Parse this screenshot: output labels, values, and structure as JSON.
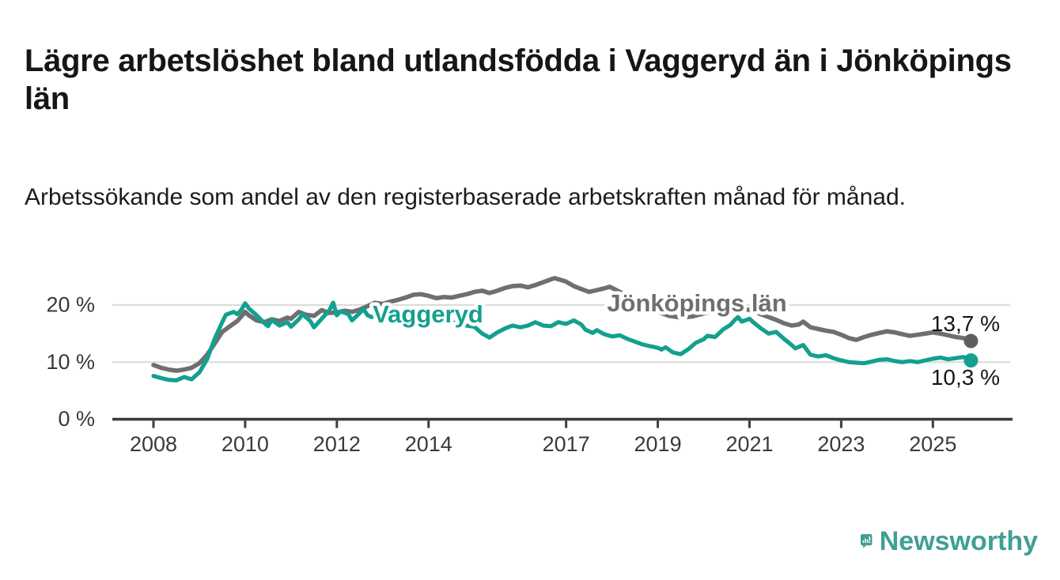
{
  "header": {
    "title": "Lägre arbetslöshet bland utlandsfödda i Vaggeryd än i Jönköpings län",
    "subtitle": "Arbetssökande som andel av den registerbaserade arbetskraften månad för månad."
  },
  "branding": {
    "logo_text": "Newsworthy",
    "logo_color": "#3f9f95",
    "logo_icon": "bar-chart-speech-bubble-icon"
  },
  "chart_data": {
    "type": "line",
    "unit": "%",
    "xlim": [
      2007.1,
      2026.7
    ],
    "ylim": [
      0,
      27.5
    ],
    "grid": "horizontal",
    "x_ticks": [
      {
        "value": 2008,
        "label": "2008"
      },
      {
        "value": 2010,
        "label": "2010"
      },
      {
        "value": 2012,
        "label": "2012"
      },
      {
        "value": 2014,
        "label": "2014"
      },
      {
        "value": 2017,
        "label": "2017"
      },
      {
        "value": 2019,
        "label": "2019"
      },
      {
        "value": 2021,
        "label": "2021"
      },
      {
        "value": 2023,
        "label": "2023"
      },
      {
        "value": 2025,
        "label": "2025"
      }
    ],
    "y_ticks": [
      {
        "value": 0,
        "label": "0 %"
      },
      {
        "value": 10,
        "label": "10 %"
      },
      {
        "value": 20,
        "label": "20 %"
      }
    ],
    "colors": {
      "gridline": "#dcdcdc",
      "axis": "#3c3c3c",
      "tick_text": "#3a3a3a",
      "value_label_text": "#161616"
    },
    "series": [
      {
        "name": "Jönköpings län",
        "color": "#6f6f6f",
        "dot_color": "#5f5f5f",
        "end_label": "13,7 %",
        "end_value": 13.7,
        "points": [
          [
            2008.0,
            9.5
          ],
          [
            2008.17,
            9.0
          ],
          [
            2008.33,
            8.7
          ],
          [
            2008.5,
            8.5
          ],
          [
            2008.67,
            8.7
          ],
          [
            2008.83,
            9.0
          ],
          [
            2009.0,
            9.8
          ],
          [
            2009.17,
            11.3
          ],
          [
            2009.33,
            13.2
          ],
          [
            2009.5,
            15.3
          ],
          [
            2009.67,
            16.3
          ],
          [
            2009.83,
            17.2
          ],
          [
            2010.0,
            18.8
          ],
          [
            2010.08,
            18.2
          ],
          [
            2010.25,
            17.3
          ],
          [
            2010.42,
            17.0
          ],
          [
            2010.58,
            17.5
          ],
          [
            2010.75,
            17.2
          ],
          [
            2010.92,
            17.8
          ],
          [
            2011.0,
            17.6
          ],
          [
            2011.17,
            18.8
          ],
          [
            2011.33,
            18.3
          ],
          [
            2011.5,
            18.1
          ],
          [
            2011.67,
            19.1
          ],
          [
            2011.83,
            18.6
          ],
          [
            2012.0,
            18.7
          ],
          [
            2012.17,
            19.0
          ],
          [
            2012.33,
            18.8
          ],
          [
            2012.5,
            19.2
          ],
          [
            2012.67,
            19.8
          ],
          [
            2012.83,
            20.4
          ],
          [
            2013.0,
            20.2
          ],
          [
            2013.17,
            20.6
          ],
          [
            2013.33,
            20.9
          ],
          [
            2013.5,
            21.3
          ],
          [
            2013.67,
            21.8
          ],
          [
            2013.83,
            21.9
          ],
          [
            2014.0,
            21.6
          ],
          [
            2014.17,
            21.2
          ],
          [
            2014.33,
            21.4
          ],
          [
            2014.5,
            21.3
          ],
          [
            2014.67,
            21.6
          ],
          [
            2014.83,
            21.9
          ],
          [
            2015.0,
            22.3
          ],
          [
            2015.17,
            22.5
          ],
          [
            2015.33,
            22.1
          ],
          [
            2015.5,
            22.5
          ],
          [
            2015.67,
            23.0
          ],
          [
            2015.83,
            23.3
          ],
          [
            2016.0,
            23.4
          ],
          [
            2016.17,
            23.1
          ],
          [
            2016.33,
            23.5
          ],
          [
            2016.5,
            24.0
          ],
          [
            2016.67,
            24.5
          ],
          [
            2016.75,
            24.7
          ],
          [
            2016.92,
            24.3
          ],
          [
            2017.0,
            24.1
          ],
          [
            2017.17,
            23.3
          ],
          [
            2017.33,
            22.8
          ],
          [
            2017.5,
            22.3
          ],
          [
            2017.67,
            22.6
          ],
          [
            2017.83,
            22.9
          ],
          [
            2017.95,
            23.2
          ],
          [
            2018.17,
            22.3
          ],
          [
            2018.33,
            21.5
          ],
          [
            2018.5,
            20.7
          ],
          [
            2018.67,
            19.9
          ],
          [
            2018.83,
            19.3
          ],
          [
            2019.0,
            18.8
          ],
          [
            2019.25,
            18.1
          ],
          [
            2019.5,
            17.8
          ],
          [
            2019.75,
            18.0
          ],
          [
            2020.0,
            18.5
          ],
          [
            2020.25,
            19.1
          ],
          [
            2020.5,
            19.6
          ],
          [
            2020.75,
            19.7
          ],
          [
            2021.0,
            19.1
          ],
          [
            2021.25,
            18.4
          ],
          [
            2021.42,
            17.9
          ],
          [
            2021.58,
            17.4
          ],
          [
            2021.75,
            16.8
          ],
          [
            2021.92,
            16.4
          ],
          [
            2022.08,
            16.6
          ],
          [
            2022.17,
            17.1
          ],
          [
            2022.33,
            16.1
          ],
          [
            2022.5,
            15.8
          ],
          [
            2022.67,
            15.5
          ],
          [
            2022.83,
            15.3
          ],
          [
            2023.0,
            14.8
          ],
          [
            2023.17,
            14.2
          ],
          [
            2023.33,
            13.9
          ],
          [
            2023.5,
            14.4
          ],
          [
            2023.67,
            14.8
          ],
          [
            2023.83,
            15.1
          ],
          [
            2024.0,
            15.4
          ],
          [
            2024.17,
            15.2
          ],
          [
            2024.33,
            14.9
          ],
          [
            2024.5,
            14.6
          ],
          [
            2024.67,
            14.8
          ],
          [
            2024.83,
            15.0
          ],
          [
            2025.0,
            15.2
          ],
          [
            2025.17,
            15.0
          ],
          [
            2025.33,
            14.7
          ],
          [
            2025.5,
            14.4
          ],
          [
            2025.67,
            14.2
          ],
          [
            2025.83,
            13.7
          ]
        ]
      },
      {
        "name": "Vaggeryd",
        "color": "#13a08f",
        "dot_color": "#13a08f",
        "end_label": "10,3 %",
        "end_value": 10.3,
        "points": [
          [
            2008.0,
            7.6
          ],
          [
            2008.17,
            7.2
          ],
          [
            2008.33,
            6.9
          ],
          [
            2008.5,
            6.8
          ],
          [
            2008.67,
            7.4
          ],
          [
            2008.83,
            7.0
          ],
          [
            2009.0,
            8.2
          ],
          [
            2009.17,
            10.5
          ],
          [
            2009.33,
            14.0
          ],
          [
            2009.5,
            17.0
          ],
          [
            2009.58,
            18.3
          ],
          [
            2009.75,
            18.8
          ],
          [
            2009.83,
            18.4
          ],
          [
            2009.92,
            19.2
          ],
          [
            2010.0,
            20.3
          ],
          [
            2010.08,
            19.4
          ],
          [
            2010.25,
            18.2
          ],
          [
            2010.42,
            16.8
          ],
          [
            2010.5,
            16.3
          ],
          [
            2010.58,
            17.4
          ],
          [
            2010.75,
            16.4
          ],
          [
            2010.92,
            17.0
          ],
          [
            2011.0,
            16.2
          ],
          [
            2011.17,
            17.5
          ],
          [
            2011.25,
            18.4
          ],
          [
            2011.42,
            17.2
          ],
          [
            2011.5,
            16.1
          ],
          [
            2011.67,
            17.6
          ],
          [
            2011.83,
            19.0
          ],
          [
            2011.92,
            20.4
          ],
          [
            2012.0,
            18.2
          ],
          [
            2012.08,
            18.9
          ],
          [
            2012.25,
            18.4
          ],
          [
            2012.33,
            17.3
          ],
          [
            2012.5,
            18.6
          ],
          [
            2012.58,
            19.3
          ],
          [
            2012.67,
            18.2
          ],
          [
            2012.75,
            17.9
          ],
          [
            2013.0,
            18.3
          ],
          [
            2013.25,
            17.8
          ],
          [
            2013.5,
            18.1
          ],
          [
            2013.75,
            17.4
          ],
          [
            2014.0,
            17.2
          ],
          [
            2014.25,
            17.6
          ],
          [
            2014.5,
            17.0
          ],
          [
            2014.75,
            16.5
          ],
          [
            2015.0,
            16.2
          ],
          [
            2015.17,
            15.0
          ],
          [
            2015.33,
            14.3
          ],
          [
            2015.5,
            15.2
          ],
          [
            2015.67,
            15.9
          ],
          [
            2015.83,
            16.4
          ],
          [
            2016.0,
            16.1
          ],
          [
            2016.17,
            16.4
          ],
          [
            2016.33,
            17.0
          ],
          [
            2016.5,
            16.4
          ],
          [
            2016.67,
            16.3
          ],
          [
            2016.83,
            17.0
          ],
          [
            2017.0,
            16.7
          ],
          [
            2017.17,
            17.3
          ],
          [
            2017.33,
            16.6
          ],
          [
            2017.42,
            15.7
          ],
          [
            2017.58,
            15.1
          ],
          [
            2017.67,
            15.6
          ],
          [
            2017.83,
            14.9
          ],
          [
            2018.0,
            14.5
          ],
          [
            2018.17,
            14.7
          ],
          [
            2018.33,
            14.1
          ],
          [
            2018.5,
            13.6
          ],
          [
            2018.67,
            13.1
          ],
          [
            2018.83,
            12.8
          ],
          [
            2019.0,
            12.5
          ],
          [
            2019.08,
            12.2
          ],
          [
            2019.17,
            12.6
          ],
          [
            2019.33,
            11.7
          ],
          [
            2019.5,
            11.4
          ],
          [
            2019.67,
            12.3
          ],
          [
            2019.83,
            13.4
          ],
          [
            2020.0,
            14.0
          ],
          [
            2020.08,
            14.6
          ],
          [
            2020.25,
            14.4
          ],
          [
            2020.42,
            15.7
          ],
          [
            2020.58,
            16.5
          ],
          [
            2020.67,
            17.3
          ],
          [
            2020.75,
            17.9
          ],
          [
            2020.83,
            17.1
          ],
          [
            2021.0,
            17.6
          ],
          [
            2021.08,
            17.0
          ],
          [
            2021.25,
            15.9
          ],
          [
            2021.42,
            15.0
          ],
          [
            2021.58,
            15.3
          ],
          [
            2021.75,
            14.1
          ],
          [
            2021.92,
            13.0
          ],
          [
            2022.0,
            12.4
          ],
          [
            2022.17,
            13.0
          ],
          [
            2022.33,
            11.3
          ],
          [
            2022.5,
            11.0
          ],
          [
            2022.67,
            11.2
          ],
          [
            2022.83,
            10.7
          ],
          [
            2023.0,
            10.3
          ],
          [
            2023.17,
            10.0
          ],
          [
            2023.33,
            9.9
          ],
          [
            2023.5,
            9.8
          ],
          [
            2023.67,
            10.1
          ],
          [
            2023.83,
            10.4
          ],
          [
            2024.0,
            10.5
          ],
          [
            2024.17,
            10.2
          ],
          [
            2024.33,
            10.0
          ],
          [
            2024.5,
            10.2
          ],
          [
            2024.67,
            10.0
          ],
          [
            2024.83,
            10.3
          ],
          [
            2025.0,
            10.6
          ],
          [
            2025.17,
            10.8
          ],
          [
            2025.33,
            10.5
          ],
          [
            2025.5,
            10.7
          ],
          [
            2025.67,
            10.9
          ],
          [
            2025.83,
            10.3
          ]
        ]
      }
    ]
  }
}
